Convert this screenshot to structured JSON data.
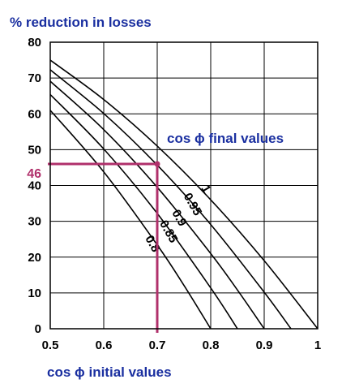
{
  "chart_data": {
    "type": "line",
    "ylabel": "% reduction in losses",
    "xlabel": "cos ϕ initial values",
    "legend_title": "cos ϕ final values",
    "xlim": [
      0.5,
      1.0
    ],
    "ylim": [
      0,
      80
    ],
    "x_ticks": [
      "0.5",
      "0.6",
      "0.7",
      "0.8",
      "0.9",
      "1"
    ],
    "y_ticks": [
      "0",
      "10",
      "20",
      "30",
      "40",
      "50",
      "60",
      "70",
      "80"
    ],
    "grid": true,
    "series": [
      {
        "name": "1",
        "x": [
          0.5,
          0.6,
          0.7,
          0.8,
          0.9,
          1.0
        ],
        "y": [
          75,
          64,
          51,
          36,
          19,
          0
        ]
      },
      {
        "name": "0.95",
        "x": [
          0.5,
          0.6,
          0.7,
          0.8,
          0.9,
          0.95
        ],
        "y": [
          72.3,
          60.1,
          45.7,
          29.1,
          10.2,
          0
        ]
      },
      {
        "name": "0.9",
        "x": [
          0.5,
          0.6,
          0.7,
          0.8,
          0.85,
          0.9
        ],
        "y": [
          69.1,
          55.6,
          39.5,
          21,
          10.8,
          0
        ]
      },
      {
        "name": "0.85",
        "x": [
          0.5,
          0.6,
          0.7,
          0.8,
          0.85
        ],
        "y": [
          65.4,
          50.2,
          32.2,
          11.4,
          0
        ]
      },
      {
        "name": "0.8",
        "x": [
          0.5,
          0.6,
          0.7,
          0.75,
          0.8
        ],
        "y": [
          61,
          43.8,
          23.4,
          12.1,
          0
        ]
      }
    ],
    "highlight": {
      "x": 0.7,
      "y": 46,
      "label": "46",
      "color": "#b0306b"
    }
  }
}
